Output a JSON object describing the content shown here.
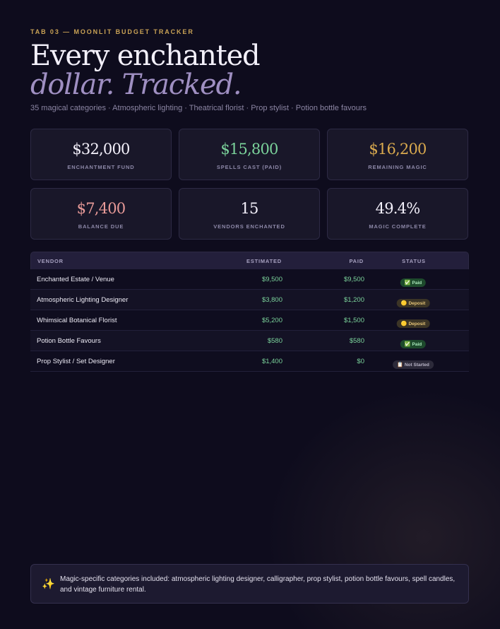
{
  "header": {
    "eyebrow": "TAB 03 — MOONLIT BUDGET TRACKER",
    "title_line1": "Every enchanted",
    "title_line2": "dollar. Tracked.",
    "subtitle": "35 magical categories · Atmospheric lighting · Theatrical florist · Prop stylist · Potion bottle favours"
  },
  "stats": [
    {
      "value": "$32,000",
      "label": "ENCHANTMENT FUND",
      "color": "#f3f0fa"
    },
    {
      "value": "$15,800",
      "label": "SPELLS CAST (PAID)",
      "color": "#7bd39b"
    },
    {
      "value": "$16,200",
      "label": "REMAINING MAGIC",
      "color": "#d9a94e"
    },
    {
      "value": "$7,400",
      "label": "BALANCE DUE",
      "color": "#e89a98"
    },
    {
      "value": "15",
      "label": "VENDORS ENCHANTED",
      "color": "#f3f0fa"
    },
    {
      "value": "49.4%",
      "label": "MAGIC COMPLETE",
      "color": "#f3f0fa"
    }
  ],
  "table": {
    "headers": {
      "vendor": "VENDOR",
      "estimated": "ESTIMATED",
      "paid": "PAID",
      "status": "STATUS"
    },
    "rows": [
      {
        "vendor": "Enchanted Estate / Venue",
        "estimated": "$9,500",
        "paid": "$9,500",
        "status": "Paid",
        "status_icon": "✅",
        "status_type": "paid"
      },
      {
        "vendor": "Atmospheric Lighting Designer",
        "estimated": "$3,800",
        "paid": "$1,200",
        "status": "Deposit",
        "status_icon": "🟡",
        "status_type": "deposit"
      },
      {
        "vendor": "Whimsical Botanical Florist",
        "estimated": "$5,200",
        "paid": "$1,500",
        "status": "Deposit",
        "status_icon": "🟡",
        "status_type": "deposit"
      },
      {
        "vendor": "Potion Bottle Favours",
        "estimated": "$580",
        "paid": "$580",
        "status": "Paid",
        "status_icon": "✅",
        "status_type": "paid"
      },
      {
        "vendor": "Prop Stylist / Set Designer",
        "estimated": "$1,400",
        "paid": "$0",
        "status": "Not Started",
        "status_icon": "📋",
        "status_type": "not-started"
      }
    ]
  },
  "note": {
    "icon": "sparkles-icon",
    "icon_glyph": "✨",
    "text": "Magic-specific categories included: atmospheric lighting designer, calligrapher, prop stylist, potion bottle favours, spell candles, and vintage furniture rental."
  }
}
